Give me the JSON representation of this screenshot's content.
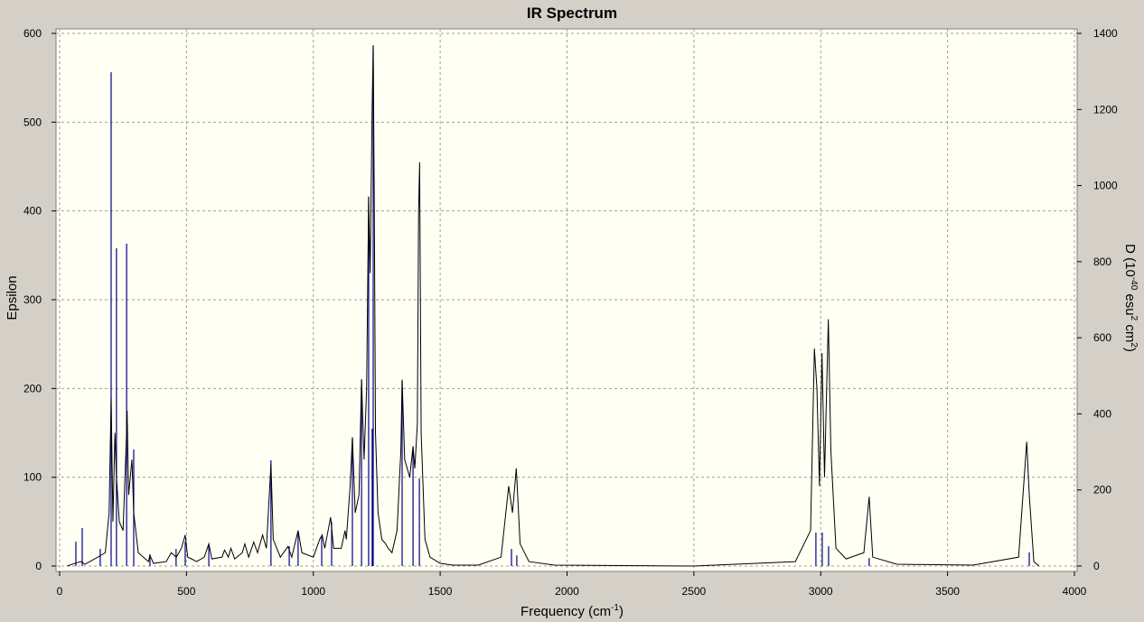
{
  "chart_data": {
    "type": "line",
    "title": "IR Spectrum",
    "x_label": [
      "Frequency (cm",
      "-1",
      ")"
    ],
    "y_label": "Epsilon",
    "y2_label": [
      "D (10",
      "-40",
      " esu",
      "2",
      " cm",
      "2",
      ")"
    ],
    "xlim": [
      0,
      4000
    ],
    "xticks": [
      0,
      500,
      1000,
      1500,
      2000,
      2500,
      3000,
      3500,
      4000
    ],
    "ylim": [
      0,
      600
    ],
    "yticks": [
      0,
      100,
      200,
      300,
      400,
      500,
      600
    ],
    "y2lim": [
      0,
      1400
    ],
    "y2ticks": [
      0,
      200,
      400,
      600,
      800,
      1000,
      1200,
      1400
    ],
    "grid": true,
    "series": [
      {
        "mark": "line",
        "color": "#000000",
        "axis": "y",
        "x": [
          30,
          60,
          84,
          100,
          150,
          180,
          195,
          203,
          210,
          218,
          224,
          235,
          250,
          262,
          266,
          272,
          285,
          292,
          310,
          350,
          356,
          370,
          420,
          440,
          460,
          480,
          495,
          505,
          520,
          540,
          570,
          588,
          600,
          640,
          650,
          665,
          675,
          690,
          720,
          730,
          745,
          765,
          780,
          800,
          815,
          833,
          842,
          870,
          900,
          915,
          940,
          955,
          1000,
          1025,
          1035,
          1045,
          1068,
          1080,
          1110,
          1125,
          1130,
          1145,
          1154,
          1165,
          1180,
          1190,
          1200,
          1210,
          1218,
          1224,
          1232,
          1236,
          1240,
          1245,
          1255,
          1270,
          1285,
          1295,
          1310,
          1330,
          1345,
          1350,
          1360,
          1380,
          1393,
          1400,
          1410,
          1415,
          1419,
          1425,
          1440,
          1460,
          1500,
          1550,
          1650,
          1740,
          1770,
          1785,
          1800,
          1815,
          1850,
          1950,
          2500,
          2900,
          2960,
          2975,
          2985,
          2995,
          3005,
          3015,
          3030,
          3040,
          3060,
          3100,
          3170,
          3191,
          3205,
          3300,
          3600,
          3780,
          3812,
          3822,
          3840,
          3860
        ],
        "values": [
          0,
          3,
          5,
          2,
          10,
          15,
          60,
          190,
          50,
          150,
          100,
          50,
          40,
          135,
          175,
          80,
          120,
          60,
          15,
          5,
          12,
          3,
          5,
          15,
          10,
          20,
          35,
          10,
          8,
          5,
          10,
          25,
          8,
          10,
          18,
          10,
          20,
          8,
          15,
          25,
          10,
          27,
          15,
          35,
          20,
          115,
          30,
          10,
          22,
          10,
          40,
          15,
          10,
          30,
          35,
          20,
          55,
          20,
          20,
          40,
          30,
          90,
          145,
          60,
          80,
          210,
          120,
          200,
          415,
          330,
          520,
          585,
          420,
          150,
          60,
          30,
          25,
          20,
          15,
          40,
          130,
          210,
          120,
          100,
          135,
          110,
          160,
          400,
          455,
          150,
          30,
          10,
          3,
          1,
          1,
          10,
          90,
          60,
          110,
          25,
          5,
          1,
          0,
          5,
          40,
          245,
          200,
          90,
          240,
          100,
          278,
          130,
          20,
          8,
          15,
          78,
          10,
          2,
          1,
          10,
          140,
          80,
          5,
          0
        ]
      },
      {
        "mark": "stem",
        "color": "#00008b",
        "axis": "y2",
        "x": [
          64,
          89,
          160,
          203,
          224,
          264,
          292,
          356,
          459,
          495,
          588,
          833,
          905,
          940,
          1033,
          1072,
          1154,
          1190,
          1218,
          1232,
          1236,
          1350,
          1393,
          1418,
          1781,
          1802,
          2981,
          3006,
          3031,
          3191,
          3822
        ],
        "values": [
          64,
          100,
          45,
          1298,
          835,
          847,
          306,
          31,
          45,
          64,
          52,
          278,
          52,
          88,
          76,
          116,
          337,
          491,
          971,
          361,
          1369,
          486,
          313,
          230,
          45,
          28,
          88,
          88,
          52,
          21,
          36
        ]
      }
    ]
  }
}
